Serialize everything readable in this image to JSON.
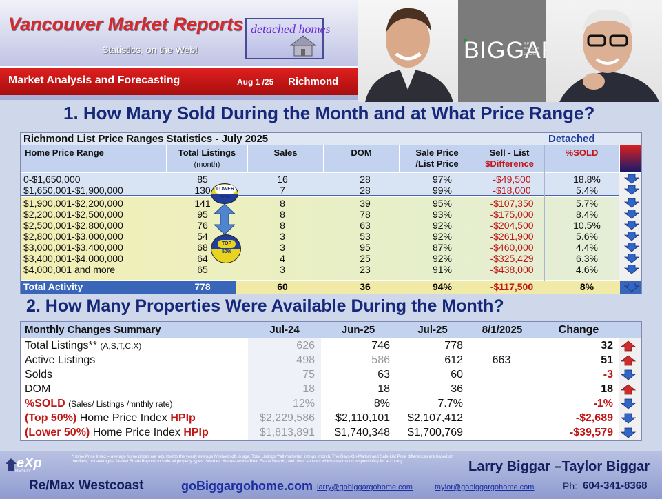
{
  "header": {
    "title": "Vancouver Market Reports",
    "subtitle": "Statistics, on the Web!",
    "badge": "detached homes",
    "bar_left": "Market Analysis and Forecasting",
    "bar_date": "Aug 1 /25",
    "bar_city": "Richmond",
    "logo_text": "BIGGAR",
    "logo_small": "REAL ESTATE GROUP"
  },
  "section1": {
    "title": "1. How Many Sold During the Month and at What Price Range?",
    "caption": "Richmond List Price Ranges Statistics - July 2025",
    "caption_right": "Detached",
    "headers": {
      "range": "Home Price Range",
      "total": "Total  Listings",
      "total_sub": "(month)",
      "sales": "Sales",
      "dom": "DOM",
      "ratio": "Sale Price",
      "ratio_sub": "/List Price",
      "diff": "Sell - List",
      "diff_sub": "$Difference",
      "pct": "%SOLD"
    },
    "lower_label": "LOWER 50%",
    "top_label": "TOP 50%",
    "rows": [
      {
        "range": "0-$1,650,000",
        "total": "85",
        "sales": "16",
        "dom": "28",
        "ratio": "97%",
        "diff": "-$49,500",
        "pct": "18.8%"
      },
      {
        "range": "$1,650,001-$1,900,000",
        "total": "130",
        "sales": "7",
        "dom": "28",
        "ratio": "99%",
        "diff": "-$18,000",
        "pct": "5.4%"
      },
      {
        "range": "$1,900,001-$2,200,000",
        "total": "141",
        "sales": "8",
        "dom": "39",
        "ratio": "95%",
        "diff": "-$107,350",
        "pct": "5.7%"
      },
      {
        "range": "$2,200,001-$2,500,000",
        "total": "95",
        "sales": "8",
        "dom": "78",
        "ratio": "93%",
        "diff": "-$175,000",
        "pct": "8.4%"
      },
      {
        "range": "$2,500,001-$2,800,000",
        "total": "76",
        "sales": "8",
        "dom": "63",
        "ratio": "92%",
        "diff": "-$204,500",
        "pct": "10.5%"
      },
      {
        "range": "$2,800,001-$3,000,000",
        "total": "54",
        "sales": "3",
        "dom": "53",
        "ratio": "92%",
        "diff": "-$261,900",
        "pct": "5.6%"
      },
      {
        "range": "$3,000,001-$3,400,000",
        "total": "68",
        "sales": "3",
        "dom": "95",
        "ratio": "87%",
        "diff": "-$460,000",
        "pct": "4.4%"
      },
      {
        "range": "$3,400,001-$4,000,000",
        "total": "64",
        "sales": "4",
        "dom": "25",
        "ratio": "92%",
        "diff": "-$325,429",
        "pct": "6.3%"
      },
      {
        "range": "$4,000,001 and more",
        "total": "65",
        "sales": "3",
        "dom": "23",
        "ratio": "91%",
        "diff": "-$438,000",
        "pct": "4.6%"
      }
    ],
    "total": {
      "label": "Total Activity",
      "total": "778",
      "sales": "60",
      "dom": "36",
      "ratio": "94%",
      "diff": "-$117,500",
      "pct": "8%"
    }
  },
  "section2": {
    "title": "2. How Many Properties Were Available During the Month?",
    "headers": {
      "label": "Monthly Changes Summary",
      "c1": "Jul-24",
      "c2": "Jun-25",
      "c3": "Jul-25",
      "c4": "8/1/2025",
      "c5": "Change"
    },
    "rows": [
      {
        "label": "Total Listings**",
        "label_small": "(A,S,T,C,X)",
        "c1": "626",
        "c2": "746",
        "c3": "778",
        "c4": "",
        "change": "32",
        "dir": "up"
      },
      {
        "label": "Active Listings",
        "label_small": "",
        "c1": "498",
        "c2": "586",
        "c3": "612",
        "c4": "663",
        "change": "51",
        "dir": "up"
      },
      {
        "label": "Solds",
        "label_small": "",
        "c1": "75",
        "c2": "63",
        "c3": "60",
        "c4": "",
        "change": "-3",
        "dir": "down"
      },
      {
        "label": "DOM",
        "label_small": "",
        "c1": "18",
        "c2": "18",
        "c3": "36",
        "c4": "",
        "change": "18",
        "dir": "up"
      },
      {
        "label": "%SOLD",
        "label_small": "(Sales/ Listings /mnthly rate)",
        "c1": "12%",
        "c2": "8%",
        "c3": "7.7%",
        "c4": "",
        "change": "-1%",
        "dir": "down"
      },
      {
        "label": "(Top 50%)",
        "label_mid": "Home Price Index",
        "label_hpi": "HPIp",
        "c1": "$2,229,586",
        "c2": "$2,110,101",
        "c3": "$2,107,412",
        "c4": "",
        "change": "-$2,689",
        "dir": "down"
      },
      {
        "label": "(Lower 50%)",
        "label_mid": "Home Price Index",
        "label_hpi": "HPIp",
        "c1": "$1,813,891",
        "c2": "$1,740,348",
        "c3": "$1,700,769",
        "c4": "",
        "change": "-$39,579",
        "dir": "down"
      }
    ]
  },
  "footer": {
    "exp": "eXp",
    "exp_sub": "REALTY",
    "note": "*Home Price Index = average home prices are adjusted to the yearly average finished sqft. & age. Total Listings **all marketed listings /month. The Days-On-Market and Sale-List Price differences are based on medians, not averages. Market Share Reports include all property types. Sources: the respective Real Estate Boards, and other sources which assume no responsibility for accuracy.",
    "names": "Larry Biggar –Taylor Biggar",
    "remax": "Re/Max Westcoast",
    "website": "goBiggargohome.com",
    "email1": "larry@gobiggargohome.com",
    "email2": "taylor@gobiggargohome.com",
    "phone_label": "Ph:",
    "phone": "604-341-8368"
  },
  "colors": {
    "red": "#c01616",
    "navy": "#16287a",
    "arrow_blue": "#2f66c8",
    "arrow_red": "#d02a2a"
  }
}
